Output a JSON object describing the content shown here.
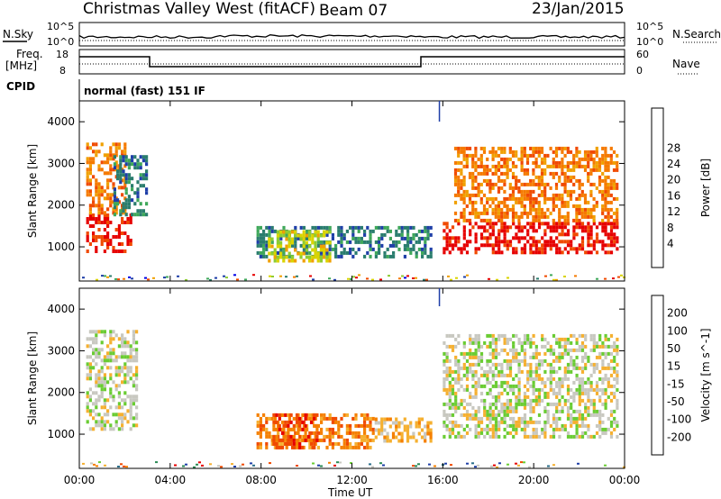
{
  "header": {
    "title": "Christmas Valley West (fitACF)",
    "beam": "Beam 07",
    "date": "23/Jan/2015"
  },
  "top_panels": {
    "nsky_label": "N.Sky",
    "nsearch_label": "N.Search",
    "freq_label_1": "Freq.",
    "freq_label_2": "[MHz]",
    "nave_label": "Nave",
    "cpid_label": "CPID",
    "cpid_text": "normal (fast) 151 IF",
    "noise_left_ticks": [
      "10^5",
      "10^0"
    ],
    "noise_right_ticks": [
      "10^5",
      "10^0"
    ],
    "freq_left_ticks": [
      "18",
      "8"
    ],
    "nave_right_ticks": [
      "60",
      "0"
    ]
  },
  "chart_data": [
    {
      "type": "heatmap",
      "name": "power",
      "xlabel": "Time UT",
      "ylabel": "Slant Range [km]",
      "x_ticks": [
        "00:00",
        "04:00",
        "08:00",
        "12:00",
        "16:00",
        "20:00",
        "00:00"
      ],
      "y_ticks": [
        1000,
        2000,
        3000,
        4000
      ],
      "ylim": [
        180,
        4500
      ],
      "colorbar": {
        "label": "Power [dB]",
        "ticks": [
          4,
          8,
          12,
          16,
          20,
          24,
          28
        ],
        "colors": [
          "#0000e6",
          "#1f3fa8",
          "#2a7d6e",
          "#3fa85a",
          "#8dcc33",
          "#d9d400",
          "#f0a000",
          "#f57a00",
          "#f04a00",
          "#e60000"
        ]
      },
      "regions": [
        {
          "t0": 0.3,
          "t1": 2.3,
          "r0": 900,
          "r1": 1800,
          "level": 9
        },
        {
          "t0": 0.3,
          "t1": 2.0,
          "r0": 1800,
          "r1": 3500,
          "level": 7
        },
        {
          "t0": 1.5,
          "t1": 3.0,
          "r0": 1800,
          "r1": 3200,
          "level": 2
        },
        {
          "t0": 7.8,
          "t1": 15.5,
          "r0": 800,
          "r1": 1500,
          "level": 2
        },
        {
          "t0": 8.3,
          "t1": 11.0,
          "r0": 700,
          "r1": 1400,
          "level": 5
        },
        {
          "t0": 16.0,
          "t1": 23.7,
          "r0": 900,
          "r1": 1600,
          "level": 9
        },
        {
          "t0": 16.5,
          "t1": 23.7,
          "r0": 1600,
          "r1": 3400,
          "level": 7
        }
      ]
    },
    {
      "type": "heatmap",
      "name": "velocity",
      "xlabel": "Time UT",
      "ylabel": "Slant Range [km]",
      "x_ticks": [
        "00:00",
        "04:00",
        "08:00",
        "12:00",
        "16:00",
        "20:00",
        "00:00"
      ],
      "y_ticks": [
        1000,
        2000,
        3000,
        4000
      ],
      "ylim": [
        180,
        4500
      ],
      "colorbar": {
        "label": "Velocity [m s^-1]",
        "ticks": [
          200,
          100,
          50,
          15,
          -15,
          -50,
          -100,
          -200
        ],
        "colors": [
          "#1f3fa8",
          "#2a6e8a",
          "#2a8a55",
          "#6acc33",
          "#c8c8c0",
          "#f5b030",
          "#f58000",
          "#f04a00",
          "#e60000"
        ]
      },
      "regions": [
        {
          "t0": 0.3,
          "t1": 2.5,
          "r0": 1100,
          "r1": 3500,
          "level": 4
        },
        {
          "t0": 7.8,
          "t1": 13.0,
          "r0": 700,
          "r1": 1500,
          "level": 6
        },
        {
          "t0": 8.5,
          "t1": 10.5,
          "r0": 700,
          "r1": 1500,
          "level": 7
        },
        {
          "t0": 13.0,
          "t1": 15.5,
          "r0": 800,
          "r1": 1400,
          "level": 5
        },
        {
          "t0": 16.0,
          "t1": 23.7,
          "r0": 900,
          "r1": 3400,
          "level": 4
        }
      ]
    }
  ]
}
